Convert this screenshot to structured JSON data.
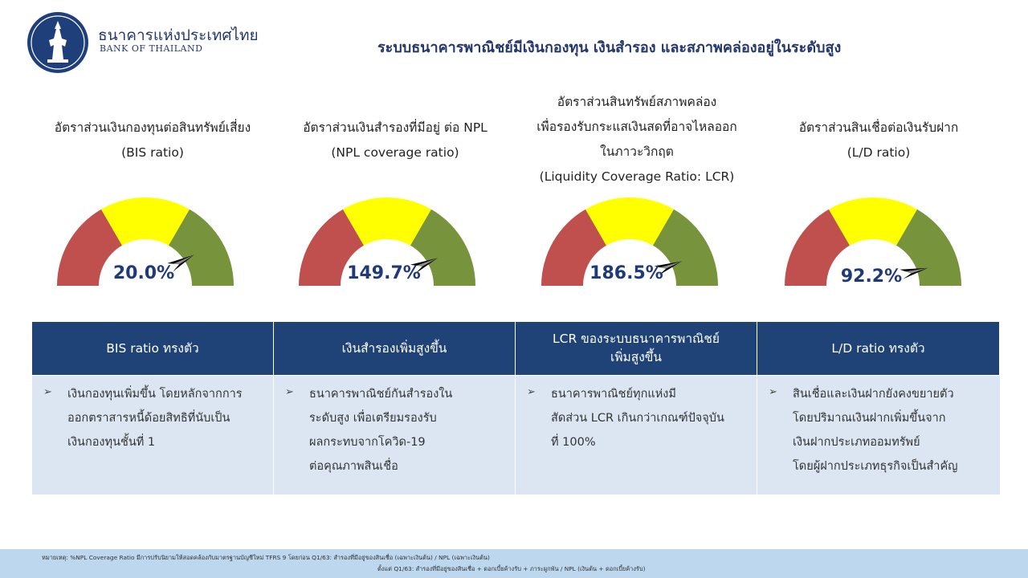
{
  "header": {
    "org_name_th": "ธนาคารแห่งประเทศไทย",
    "org_name_en": "BANK OF THAILAND",
    "title": "ระบบธนาคารพาณิชย์มีเงินกองทุน เงินสำรอง และสภาพคล่องอยู่ในระดับสูง"
  },
  "metrics": [
    {
      "title_lines": [
        "อัตราส่วนเงินกองทุนต่อสินทรัพย์เสี่ยง",
        "(BIS ratio)"
      ],
      "value": "20.0%",
      "needle_level": 0.82
    },
    {
      "title_lines": [
        "อัตราส่วนเงินสำรองที่มีอยู่ ต่อ NPL",
        "(NPL coverage ratio)"
      ],
      "value": "149.7%",
      "needle_level": 0.84
    },
    {
      "title_lines": [
        "อัตราส่วนสินทรัพย์สภาพคล่อง",
        "เพื่อรองรับกระแสเงินสดที่อาจไหลออก",
        "ในภาวะวิกฤต",
        "(Liquidity Coverage Ratio: LCR)"
      ],
      "value": "186.5%",
      "needle_level": 0.86
    },
    {
      "title_lines": [
        "อัตราส่วนสินเชื่อต่อเงินรับฝาก",
        "(L/D ratio)"
      ],
      "value": "92.2%",
      "needle_level": 0.9
    }
  ],
  "gauge_colors": {
    "low": "#c0504d",
    "mid": "#ffff00",
    "high": "#77933c",
    "needle": "#000000"
  },
  "table": {
    "headers": [
      [
        "BIS ratio ทรงตัว"
      ],
      [
        "เงินสำรองเพิ่มสูงขึ้น"
      ],
      [
        "LCR ของระบบธนาคารพาณิชย์",
        "เพิ่มสูงขึ้น"
      ],
      [
        "L/D ratio ทรงตัว"
      ]
    ],
    "bullet_symbol": "➢",
    "cells": [
      [
        "เงินกองทุนเพิ่มขึ้น โดยหลักจากการ",
        "ออกตราสารหนี้ด้อยสิทธิที่นับเป็น",
        "เงินกองทุนชั้นที่ 1"
      ],
      [
        "ธนาคารพาณิชย์กันสำรองใน",
        "ระดับสูง เพื่อเตรียมรองรับ",
        "ผลกระทบจากโควิด-19",
        "ต่อคุณภาพสินเชื่อ"
      ],
      [
        "ธนาคารพาณิชย์ทุกแห่งมี",
        "สัดส่วน LCR เกินกว่าเกณฑ์ปัจจุบัน",
        "ที่ 100%"
      ],
      [
        "สินเชื่อและเงินฝากยังคงขยายตัว",
        "โดยปริมาณเงินฝากเพิ่มขึ้นจาก",
        "เงินฝากประเภทออมทรัพย์",
        "โดยผู้ฝากประเภทธุรกิจเป็นสำคัญ"
      ]
    ]
  },
  "footer": {
    "line1": "หมายเหตุ: %NPL Coverage Ratio มีการปรับนิยามให้สอดคล้องกับมาตรฐานบัญชีใหม่ TFRS 9 โดยก่อน Q1/63: สำรองที่มีอยู่ของสินเชื่อ (เฉพาะเงินต้น) / NPL (เฉพาะเงินต้น)",
    "line2": "ตั้งแต่ Q1/63: สำรองที่มีอยู่ของสินเชื่อ + ดอกเบี้ยค้างรับ + ภาระผูกพัน / NPL (เงินต้น + ดอกเบี้ยค้างรับ)"
  }
}
